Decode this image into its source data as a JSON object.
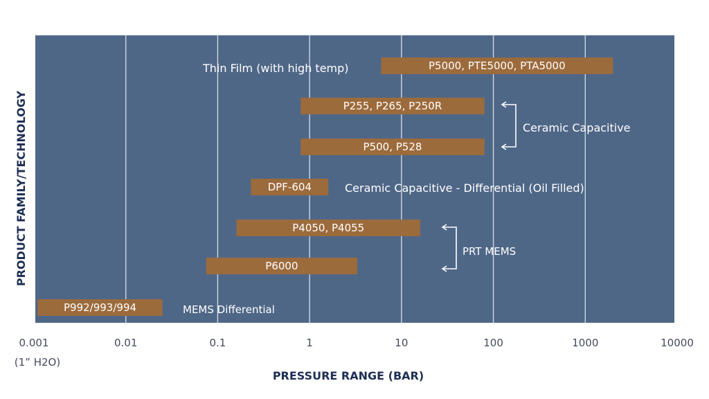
{
  "chart_data": {
    "type": "bar",
    "orientation": "horizontal",
    "x_scale": "log",
    "xlim": [
      0.001,
      10000
    ],
    "xlabel": "PRESSURE RANGE (BAR)",
    "ylabel": "PRODUCT FAMILY/TECHNOLOGY",
    "x_ticks": [
      {
        "value": 0.001,
        "label": "0.001"
      },
      {
        "value": 0.01,
        "label": "0.01"
      },
      {
        "value": 0.1,
        "label": "0.1"
      },
      {
        "value": 1,
        "label": "1"
      },
      {
        "value": 10,
        "label": "10"
      },
      {
        "value": 100,
        "label": "100"
      },
      {
        "value": 1000,
        "label": "1000"
      },
      {
        "value": 10000,
        "label": "10000"
      }
    ],
    "x_tick_sublabel": "(1” H2O)",
    "grid": "vertical",
    "bars": [
      {
        "label": "P5000, PTE5000, PTA5000",
        "start": 6,
        "end": 2000
      },
      {
        "label": "P255, P265, P250R",
        "start": 0.8,
        "end": 80
      },
      {
        "label": "P500, P528",
        "start": 0.8,
        "end": 80
      },
      {
        "label": "DPF-604",
        "start": 0.23,
        "end": 1.6
      },
      {
        "label": "P4050, P4055",
        "start": 0.16,
        "end": 16
      },
      {
        "label": "P6000",
        "start": 0.075,
        "end": 3.3
      },
      {
        "label": "P992/993/994",
        "start": 0.0011,
        "end": 0.025
      }
    ],
    "annotations": {
      "thin_film": "Thin Film (with high temp)",
      "ceramic_capacitive": "Ceramic Capacitive",
      "ceramic_differential": "Ceramic Capacitive - Differential (Oil Filled)",
      "prt_mems": "PRT MEMS",
      "mems_differential": "MEMS Differential"
    },
    "colors": {
      "plot_background": "#4f6787",
      "bar": "#9c6b3c",
      "grid": "#cfd6e0",
      "axis_title": "#1f2f55"
    }
  }
}
